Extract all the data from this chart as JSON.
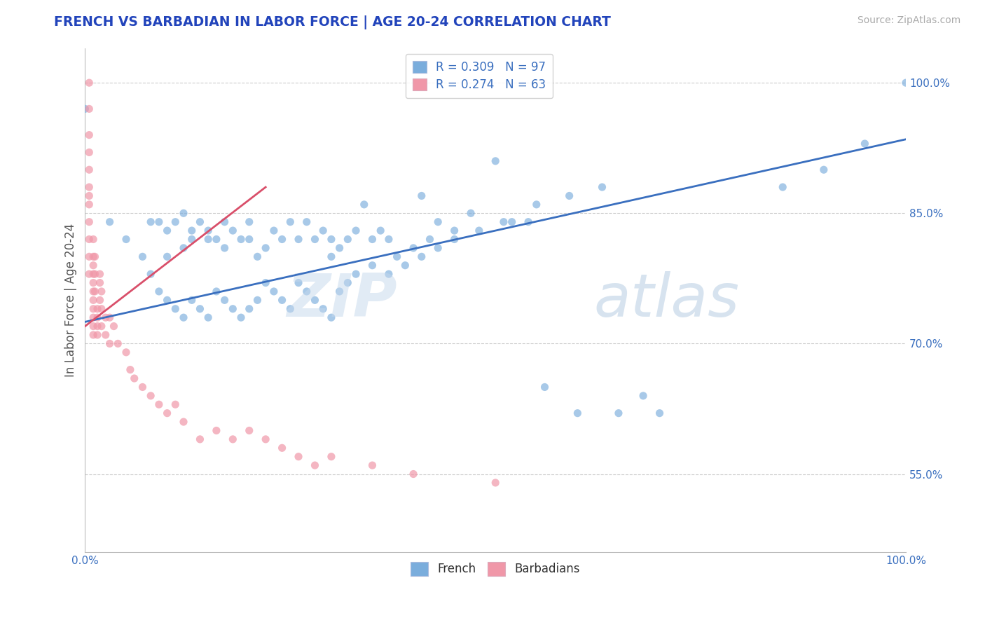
{
  "title": "FRENCH VS BARBADIAN IN LABOR FORCE | AGE 20-24 CORRELATION CHART",
  "source_text": "Source: ZipAtlas.com",
  "ylabel": "In Labor Force | Age 20-24",
  "xlim": [
    0.0,
    1.0
  ],
  "ylim": [
    0.46,
    1.04
  ],
  "ytick_labels": [
    "55.0%",
    "70.0%",
    "85.0%",
    "100.0%"
  ],
  "ytick_vals": [
    0.55,
    0.7,
    0.85,
    1.0
  ],
  "xtick_labels": [
    "0.0%",
    "100.0%"
  ],
  "xtick_vals": [
    0.0,
    1.0
  ],
  "legend_R_french": "R = 0.309",
  "legend_N_french": "N = 97",
  "legend_R_barbadian": "R = 0.274",
  "legend_N_barbadian": "N = 63",
  "french_color": "#7aaddc",
  "barbadian_color": "#f097a8",
  "french_line_color": "#3a6fbf",
  "barbadian_line_color": "#d94f6a",
  "title_color": "#2244bb",
  "tick_color": "#3a6fbf",
  "source_color": "#aaaaaa",
  "legend_label_color": "#3a6fbf",
  "watermark_zip_color": "#c5d8ec",
  "watermark_atlas_color": "#b0c8e0",
  "french_line_x0": 0.0,
  "french_line_y0": 0.725,
  "french_line_x1": 1.0,
  "french_line_y1": 0.935,
  "barbadian_line_x0": 0.0,
  "barbadian_line_y0": 0.72,
  "barbadian_line_x1": 0.22,
  "barbadian_line_y1": 0.88,
  "french_x": [
    0.0,
    0.03,
    0.05,
    0.07,
    0.08,
    0.09,
    0.1,
    0.1,
    0.11,
    0.12,
    0.12,
    0.13,
    0.13,
    0.14,
    0.15,
    0.15,
    0.16,
    0.17,
    0.17,
    0.18,
    0.19,
    0.2,
    0.2,
    0.21,
    0.22,
    0.23,
    0.24,
    0.25,
    0.26,
    0.27,
    0.28,
    0.29,
    0.3,
    0.3,
    0.31,
    0.32,
    0.33,
    0.34,
    0.35,
    0.36,
    0.37,
    0.38,
    0.4,
    0.41,
    0.42,
    0.43,
    0.45,
    0.47,
    0.5,
    0.52,
    0.54,
    0.56,
    0.6,
    0.65,
    0.68,
    0.7,
    0.85,
    0.9,
    0.95,
    1.0,
    0.08,
    0.09,
    0.1,
    0.11,
    0.12,
    0.13,
    0.14,
    0.15,
    0.16,
    0.17,
    0.18,
    0.19,
    0.2,
    0.21,
    0.22,
    0.23,
    0.24,
    0.25,
    0.26,
    0.27,
    0.28,
    0.29,
    0.3,
    0.31,
    0.32,
    0.33,
    0.35,
    0.37,
    0.39,
    0.41,
    0.43,
    0.45,
    0.48,
    0.51,
    0.55,
    0.59,
    0.63
  ],
  "french_y": [
    0.97,
    0.84,
    0.82,
    0.8,
    0.84,
    0.84,
    0.83,
    0.8,
    0.84,
    0.85,
    0.81,
    0.82,
    0.83,
    0.84,
    0.83,
    0.82,
    0.82,
    0.81,
    0.84,
    0.83,
    0.82,
    0.84,
    0.82,
    0.8,
    0.81,
    0.83,
    0.82,
    0.84,
    0.82,
    0.84,
    0.82,
    0.83,
    0.82,
    0.8,
    0.81,
    0.82,
    0.83,
    0.86,
    0.82,
    0.83,
    0.82,
    0.8,
    0.81,
    0.87,
    0.82,
    0.84,
    0.83,
    0.85,
    0.91,
    0.84,
    0.84,
    0.65,
    0.62,
    0.62,
    0.64,
    0.62,
    0.88,
    0.9,
    0.93,
    1.0,
    0.78,
    0.76,
    0.75,
    0.74,
    0.73,
    0.75,
    0.74,
    0.73,
    0.76,
    0.75,
    0.74,
    0.73,
    0.74,
    0.75,
    0.77,
    0.76,
    0.75,
    0.74,
    0.77,
    0.76,
    0.75,
    0.74,
    0.73,
    0.76,
    0.77,
    0.78,
    0.79,
    0.78,
    0.79,
    0.8,
    0.81,
    0.82,
    0.83,
    0.84,
    0.86,
    0.87,
    0.88
  ],
  "barbadian_x": [
    0.005,
    0.005,
    0.005,
    0.005,
    0.005,
    0.005,
    0.005,
    0.005,
    0.005,
    0.005,
    0.005,
    0.005,
    0.01,
    0.01,
    0.01,
    0.01,
    0.01,
    0.01,
    0.01,
    0.01,
    0.01,
    0.01,
    0.01,
    0.012,
    0.012,
    0.012,
    0.015,
    0.015,
    0.015,
    0.015,
    0.018,
    0.018,
    0.018,
    0.02,
    0.02,
    0.02,
    0.025,
    0.025,
    0.03,
    0.03,
    0.035,
    0.04,
    0.05,
    0.055,
    0.06,
    0.07,
    0.08,
    0.09,
    0.1,
    0.11,
    0.12,
    0.14,
    0.16,
    0.18,
    0.2,
    0.22,
    0.24,
    0.26,
    0.28,
    0.3,
    0.35,
    0.4,
    0.5
  ],
  "barbadian_y": [
    1.0,
    0.97,
    0.94,
    0.92,
    0.9,
    0.88,
    0.87,
    0.86,
    0.84,
    0.82,
    0.8,
    0.78,
    0.82,
    0.8,
    0.79,
    0.78,
    0.77,
    0.76,
    0.75,
    0.74,
    0.73,
    0.72,
    0.71,
    0.8,
    0.78,
    0.76,
    0.74,
    0.73,
    0.72,
    0.71,
    0.78,
    0.77,
    0.75,
    0.76,
    0.74,
    0.72,
    0.73,
    0.71,
    0.73,
    0.7,
    0.72,
    0.7,
    0.69,
    0.67,
    0.66,
    0.65,
    0.64,
    0.63,
    0.62,
    0.63,
    0.61,
    0.59,
    0.6,
    0.59,
    0.6,
    0.59,
    0.58,
    0.57,
    0.56,
    0.57,
    0.56,
    0.55,
    0.54
  ]
}
